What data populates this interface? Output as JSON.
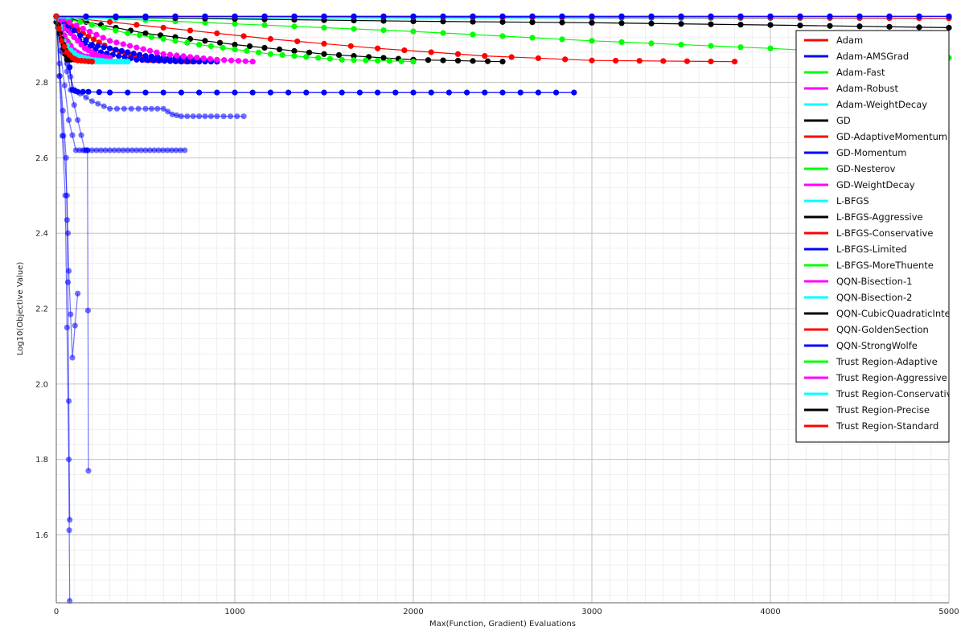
{
  "chart_data": {
    "type": "line",
    "xlabel": "Max(Function, Gradient) Evaluations",
    "ylabel": "Log10(Objective Value)",
    "xlim": [
      0,
      5000
    ],
    "ylim": [
      1.42,
      2.98
    ],
    "x_ticks": [
      0,
      1000,
      2000,
      3000,
      4000,
      5000
    ],
    "y_ticks": [
      1.6,
      1.8,
      2.0,
      2.2,
      2.4,
      2.6,
      2.8
    ],
    "x_tick_labels": [
      "0",
      "1000",
      "2000",
      "3000",
      "4000",
      "5000"
    ],
    "y_tick_labels": [
      "1.6",
      "1.8",
      "2.0",
      "2.2",
      "2.4",
      "2.6",
      "2.8"
    ],
    "grid": true,
    "legend_position": "top-right",
    "series": [
      {
        "name": "Adam",
        "color": "#ff0000",
        "x": [
          0,
          150,
          300,
          500,
          800
        ],
        "y": [
          2.975,
          2.93,
          2.89,
          2.86,
          2.855
        ]
      },
      {
        "name": "Adam-AMSGrad",
        "color": "#0000ff",
        "x": [
          0,
          100,
          250,
          450,
          700,
          900
        ],
        "y": [
          2.975,
          2.92,
          2.88,
          2.86,
          2.855,
          2.855
        ]
      },
      {
        "name": "Adam-Fast",
        "color": "#00ff00",
        "x": [
          0,
          50,
          100,
          150,
          200
        ],
        "y": [
          2.975,
          2.92,
          2.88,
          2.86,
          2.855
        ]
      },
      {
        "name": "Adam-Robust",
        "color": "#ff00ff",
        "x": [
          0,
          80,
          160,
          240,
          300
        ],
        "y": [
          2.975,
          2.93,
          2.89,
          2.87,
          2.865
        ]
      },
      {
        "name": "Adam-WeightDecay",
        "color": "#00ffff",
        "x": [
          0,
          60,
          120,
          180,
          400
        ],
        "y": [
          2.975,
          2.9,
          2.87,
          2.855,
          2.855
        ]
      },
      {
        "name": "GD",
        "color": "#000000",
        "x": [
          0,
          500,
          1000,
          1500,
          2000,
          2500
        ],
        "y": [
          2.975,
          2.93,
          2.9,
          2.875,
          2.86,
          2.855
        ]
      },
      {
        "name": "GD-AdaptiveMomentum",
        "color": "#ff0000",
        "x": [
          0,
          600,
          1200,
          1800,
          2400,
          3000,
          3800
        ],
        "y": [
          2.975,
          2.945,
          2.915,
          2.89,
          2.87,
          2.858,
          2.855
        ]
      },
      {
        "name": "GD-Momentum",
        "color": "#0000ff",
        "x": [
          0,
          200,
          500,
          900
        ],
        "y": [
          2.975,
          2.9,
          2.87,
          2.855
        ]
      },
      {
        "name": "GD-Nesterov",
        "color": "#00ff00",
        "x": [
          0,
          400,
          800,
          1200,
          1600,
          2000
        ],
        "y": [
          2.975,
          2.93,
          2.9,
          2.875,
          2.86,
          2.855
        ]
      },
      {
        "name": "GD-WeightDecay",
        "color": "#ff00ff",
        "x": [
          0,
          300,
          600,
          900,
          1100
        ],
        "y": [
          2.975,
          2.91,
          2.875,
          2.86,
          2.855
        ]
      },
      {
        "name": "L-BFGS",
        "color": "#00ffff",
        "x": [
          0,
          500,
          1000,
          2000,
          3000,
          4000,
          5000
        ],
        "y": [
          2.975,
          2.975,
          2.975,
          2.975,
          2.975,
          2.975,
          2.975
        ]
      },
      {
        "name": "L-BFGS-Aggressive",
        "color": "#000000",
        "x": [
          0,
          20,
          40,
          60
        ],
        "y": [
          2.96,
          2.93,
          2.89,
          2.86
        ]
      },
      {
        "name": "L-BFGS-Conservative",
        "color": "#ff0000",
        "x": [
          0,
          50,
          100,
          200
        ],
        "y": [
          2.975,
          2.88,
          2.86,
          2.855
        ]
      },
      {
        "name": "L-BFGS-Limited",
        "color": "#0000ff",
        "x": [
          0,
          60,
          90,
          120,
          180,
          300,
          500,
          1000,
          1500,
          2000,
          2500,
          2900
        ],
        "y": [
          2.975,
          2.9,
          2.78,
          2.775,
          2.775,
          2.773,
          2.773,
          2.773,
          2.773,
          2.773,
          2.773,
          2.773
        ]
      },
      {
        "name": "L-BFGS-MoreThuente",
        "color": "#00ff00",
        "x": [
          0,
          1000,
          2000,
          3000,
          4000,
          5000
        ],
        "y": [
          2.975,
          2.955,
          2.935,
          2.91,
          2.89,
          2.865
        ]
      },
      {
        "name": "QQN-Bisection-1",
        "color": "#ff00ff",
        "x": [
          0,
          1000,
          2000,
          3000,
          4000,
          5000
        ],
        "y": [
          2.975,
          2.975,
          2.975,
          2.975,
          2.975,
          2.975
        ]
      },
      {
        "name": "QQN-Bisection-2",
        "color": "#00ffff",
        "x": [
          0,
          1000,
          2000,
          3000,
          4000,
          5000
        ],
        "y": [
          2.97,
          2.97,
          2.97,
          2.97,
          2.97,
          2.97
        ]
      },
      {
        "name": "QQN-CubicQuadraticInterpolation",
        "color": "#000000",
        "x": [
          0,
          1000,
          2000,
          3000,
          4000,
          5000
        ],
        "y": [
          2.975,
          2.968,
          2.962,
          2.958,
          2.952,
          2.945
        ]
      },
      {
        "name": "QQN-GoldenSection",
        "color": "#ff0000",
        "x": [
          0,
          1000,
          2000,
          3000,
          4000,
          5000
        ],
        "y": [
          2.975,
          2.974,
          2.973,
          2.972,
          2.971,
          2.97
        ]
      },
      {
        "name": "QQN-StrongWolfe",
        "color": "#0000ff",
        "x": [
          0,
          1000,
          2000,
          3000,
          4000,
          5000
        ],
        "y": [
          2.975,
          2.975,
          2.975,
          2.975,
          2.975,
          2.975
        ]
      },
      {
        "name": "Trust Region-Adaptive",
        "color": "#00ff00",
        "x": [
          0,
          30,
          60,
          100,
          150,
          200
        ],
        "y": [
          2.975,
          2.93,
          2.89,
          2.87,
          2.86,
          2.855
        ]
      },
      {
        "name": "Trust Region-Aggressive",
        "color": "#ff00ff",
        "x": [
          0,
          30,
          60,
          100,
          150,
          300
        ],
        "y": [
          2.975,
          2.94,
          2.91,
          2.885,
          2.87,
          2.86
        ]
      },
      {
        "name": "Trust Region-Conservative",
        "color": "#00ffff",
        "x": [
          0,
          40,
          80,
          120,
          200,
          300,
          400
        ],
        "y": [
          2.975,
          2.91,
          2.885,
          2.87,
          2.86,
          2.855,
          2.855
        ]
      },
      {
        "name": "Trust Region-Precise",
        "color": "#000000",
        "x": [
          0,
          20,
          40,
          60,
          80
        ],
        "y": [
          2.975,
          2.93,
          2.9,
          2.87,
          2.86
        ]
      },
      {
        "name": "Trust Region-Standard",
        "color": "#ff0000",
        "x": [
          0,
          30,
          60,
          90,
          120,
          200
        ],
        "y": [
          2.975,
          2.91,
          2.88,
          2.865,
          2.858,
          2.855
        ]
      }
    ],
    "outlier_runs": [
      {
        "color": "#0000ff",
        "x": [
          0,
          60,
          100,
          200,
          300,
          500,
          600,
          650,
          700,
          800,
          900,
          1050
        ],
        "y": [
          2.975,
          2.85,
          2.78,
          2.75,
          2.73,
          2.73,
          2.73,
          2.715,
          2.71,
          2.71,
          2.71,
          2.71
        ]
      },
      {
        "color": "#0000ff",
        "x": [
          0,
          70,
          110,
          150,
          300,
          500,
          720
        ],
        "y": [
          2.975,
          2.7,
          2.62,
          2.62,
          2.62,
          2.62,
          2.62
        ]
      },
      {
        "color": "#0000ff",
        "x": [
          0,
          60,
          70,
          90,
          120
        ],
        "y": [
          2.975,
          2.5,
          2.3,
          2.07,
          2.24
        ]
      },
      {
        "color": "#0000ff",
        "x": [
          0,
          55,
          65,
          75
        ],
        "y": [
          2.975,
          2.6,
          2.27,
          1.64
        ]
      },
      {
        "color": "#0000ff",
        "x": [
          0,
          50,
          70,
          75
        ],
        "y": [
          2.975,
          2.5,
          1.8,
          1.425
        ]
      },
      {
        "color": "#0000ff",
        "x": [
          0,
          80,
          160,
          175,
          180
        ],
        "y": [
          2.975,
          2.78,
          2.62,
          2.62,
          1.77
        ]
      }
    ]
  }
}
